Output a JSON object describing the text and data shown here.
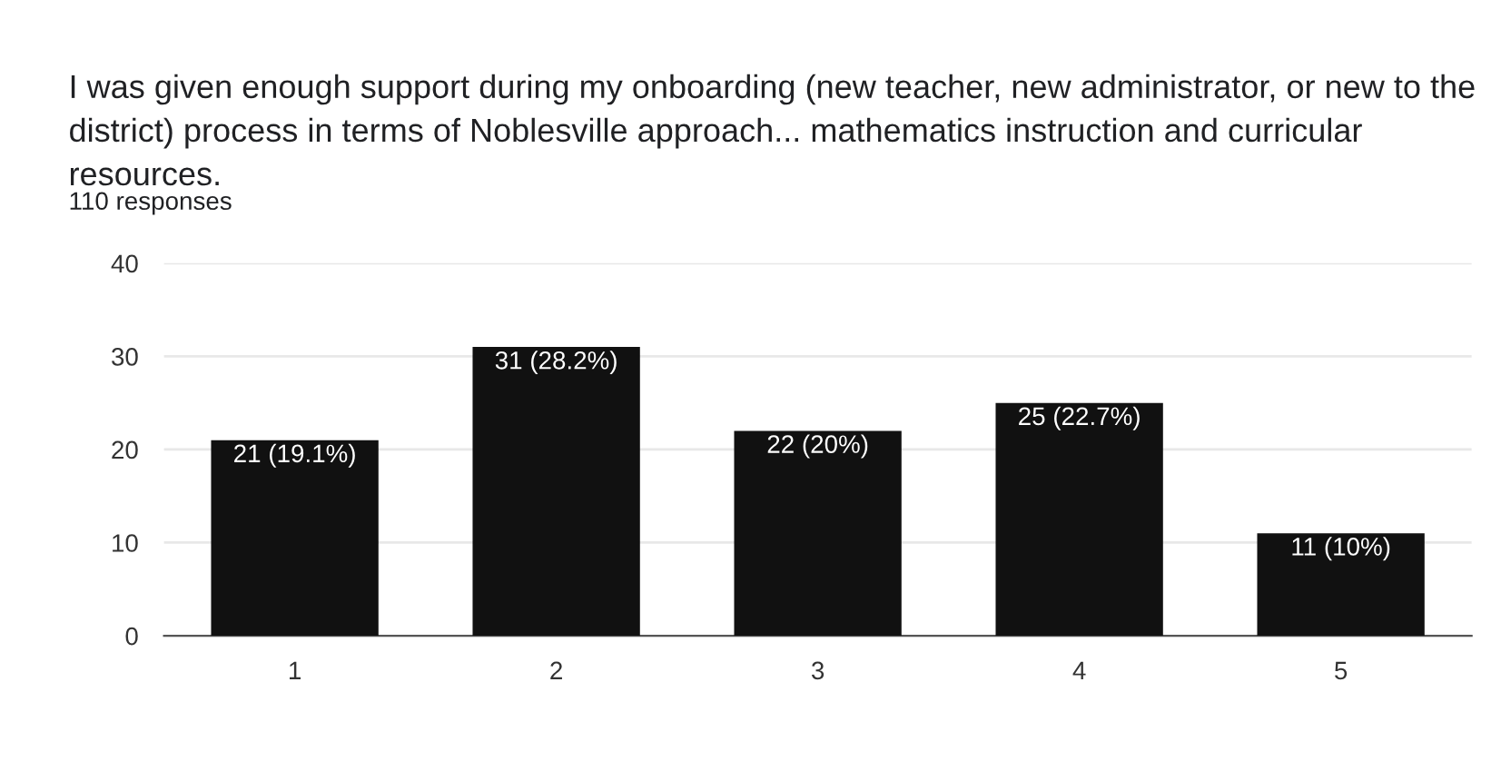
{
  "chart_data": {
    "type": "bar",
    "title": "I was given enough support during my onboarding (new teacher, new administrator, or new to the district) process in terms of Noblesville approach... mathematics instruction and curricular resources.",
    "subtitle": "110 responses",
    "categories": [
      "1",
      "2",
      "3",
      "4",
      "5"
    ],
    "values": [
      21,
      31,
      22,
      25,
      11
    ],
    "value_labels": [
      "21 (19.1%)",
      "31 (28.2%)",
      "22 (20%)",
      "25 (22.7%)",
      "11 (10%)"
    ],
    "color": "#111111",
    "ylim": [
      0,
      40
    ],
    "yticks": [
      0,
      10,
      20,
      30,
      40
    ],
    "grid": "y",
    "legend": false
  }
}
